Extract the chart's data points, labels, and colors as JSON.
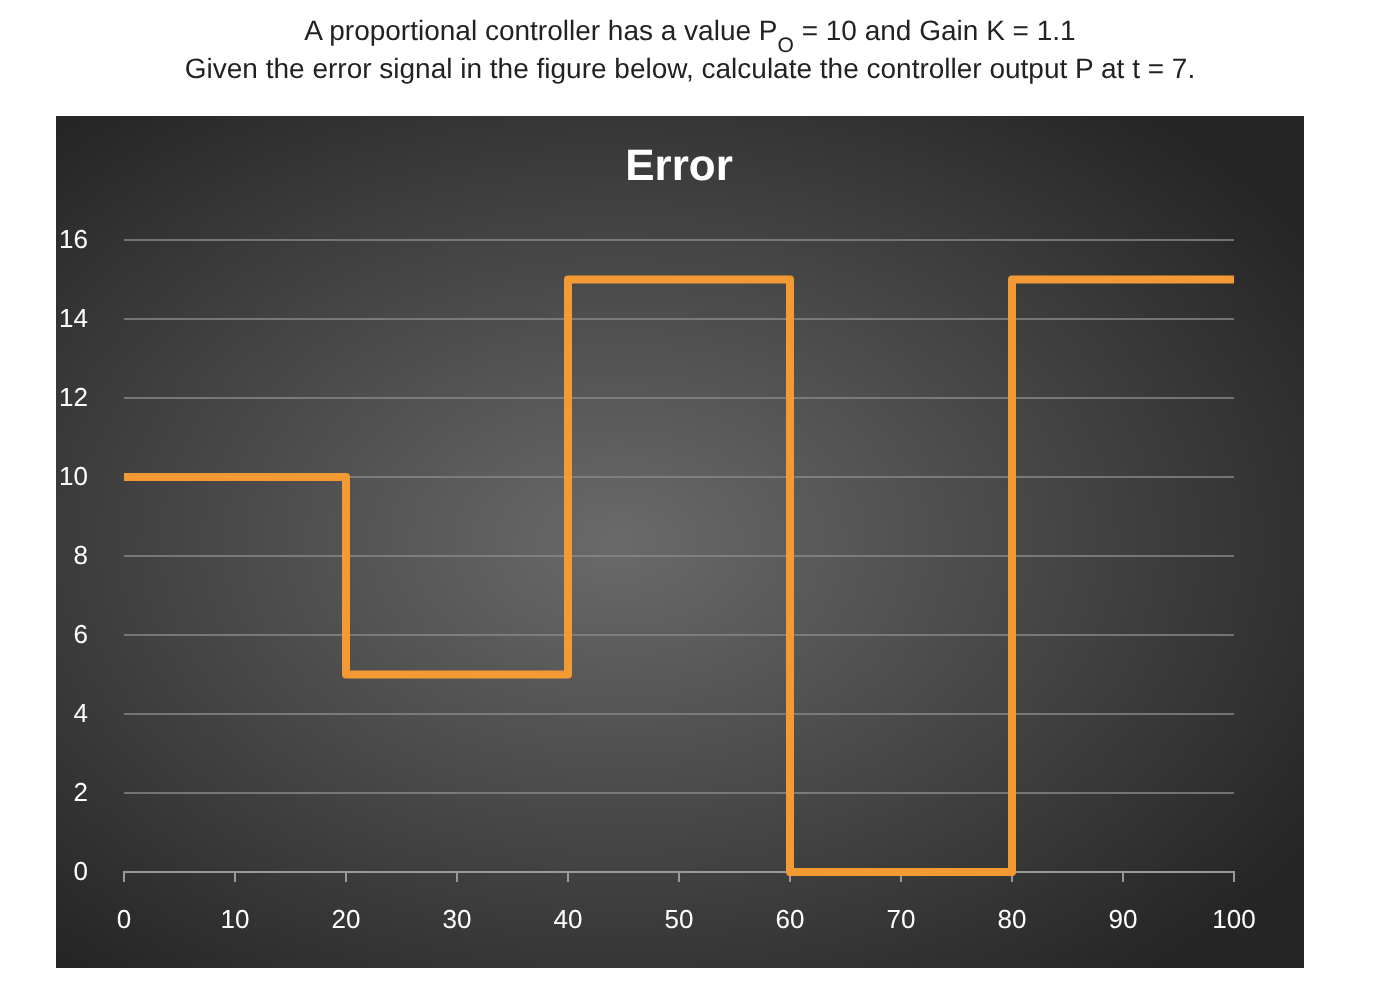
{
  "chart_data": {
    "type": "step",
    "title": "Error",
    "annotations": [
      "A proportional controller has a value P$_{O}$ = 10  and Gain K = 1.1",
      "Given the error signal in the figure below, calculate the controller output P at t = 7."
    ],
    "x": [
      0,
      20,
      40,
      60,
      80,
      100
    ],
    "series": [
      {
        "color": "#f39a35",
        "values": [
          10,
          5,
          15,
          0,
          15,
          15
        ]
      }
    ],
    "xlim": [
      0,
      100
    ],
    "xticks": [
      0,
      10,
      20,
      30,
      40,
      50,
      60,
      70,
      80,
      90,
      100
    ],
    "ylim": [
      0,
      16
    ],
    "yticks": [
      0,
      2,
      4,
      6,
      8,
      10,
      12,
      14,
      16
    ],
    "grid": "y",
    "legend": false,
    "line_style": "solid",
    "marker": "none"
  }
}
